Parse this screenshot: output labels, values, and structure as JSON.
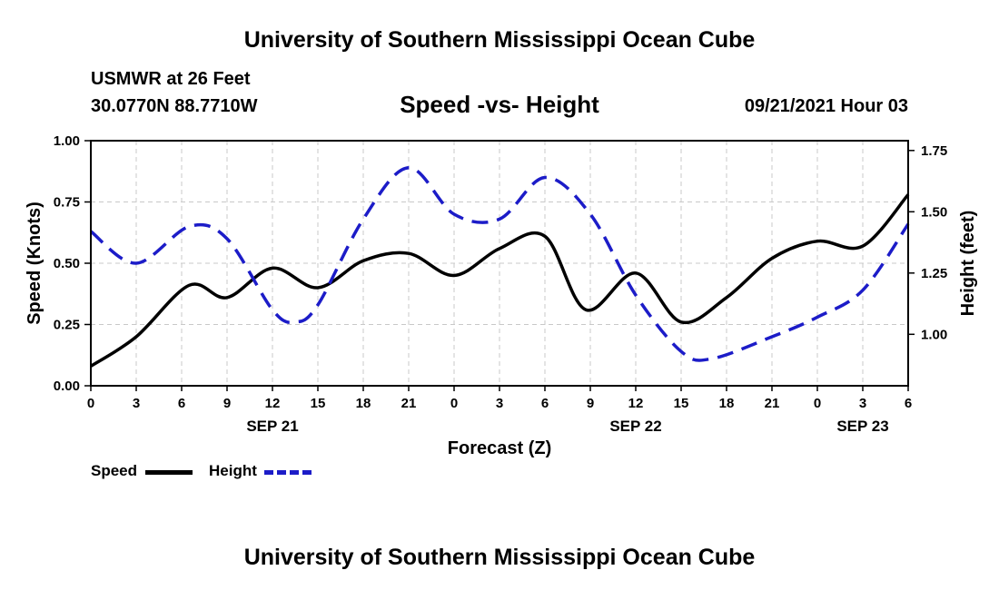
{
  "header": {
    "title": "University of Southern Mississippi Ocean Cube",
    "station": "USMWR at 26 Feet",
    "coords": "30.0770N  88.7710W",
    "subtitle": "Speed -vs- Height",
    "datetime": "09/21/2021 Hour 03"
  },
  "footer": {
    "title": "University of Southern Mississippi Ocean Cube"
  },
  "legend": {
    "speed_label": "Speed",
    "height_label": "Height"
  },
  "colors": {
    "speed": "#000000",
    "height": "#1c1cc8",
    "grid": "#c8c8c8"
  },
  "chart_data": {
    "type": "line",
    "title": "Speed -vs- Height",
    "xlabel": "Forecast (Z)",
    "ylabel": "Speed (Knots)",
    "y2label": "Height (feet)",
    "x_range": [
      0,
      54
    ],
    "ylim": [
      0,
      1.0
    ],
    "y2lim": [
      0.79,
      1.79
    ],
    "yticks": [
      "0.00",
      "0.25",
      "0.50",
      "0.75",
      "1.00"
    ],
    "yticks_values": [
      0,
      0.25,
      0.5,
      0.75,
      1.0
    ],
    "y2ticks": [
      "1.00",
      "1.25",
      "1.50",
      "1.75"
    ],
    "y2ticks_values": [
      1.0,
      1.25,
      1.5,
      1.75
    ],
    "xticks": [
      "0",
      "3",
      "6",
      "9",
      "12",
      "15",
      "18",
      "21",
      "0",
      "3",
      "6",
      "9",
      "12",
      "15",
      "18",
      "21",
      "0",
      "3",
      "6"
    ],
    "date_labels": [
      {
        "label": "SEP 21",
        "x": 12
      },
      {
        "label": "SEP 22",
        "x": 36
      },
      {
        "label": "SEP 23",
        "x": 51
      }
    ],
    "grid": true,
    "legend_position": "bottom-left",
    "series": [
      {
        "name": "Speed",
        "axis": "left",
        "x": [
          0,
          3,
          6.5,
          9,
          12,
          15,
          18,
          21,
          24,
          27,
          30,
          32.7,
          36,
          39,
          42,
          45,
          48,
          51,
          54
        ],
        "values": [
          0.08,
          0.2,
          0.41,
          0.36,
          0.48,
          0.4,
          0.51,
          0.54,
          0.45,
          0.56,
          0.61,
          0.31,
          0.46,
          0.26,
          0.36,
          0.52,
          0.59,
          0.57,
          0.78
        ]
      },
      {
        "name": "Height",
        "axis": "right",
        "x": [
          0,
          3,
          6.5,
          9,
          12,
          13.5,
          15,
          18,
          21,
          24,
          27,
          30,
          33,
          36,
          39,
          41,
          45,
          48,
          51,
          54
        ],
        "values": [
          1.42,
          1.29,
          1.44,
          1.39,
          1.1,
          1.05,
          1.12,
          1.47,
          1.68,
          1.49,
          1.47,
          1.64,
          1.49,
          1.16,
          0.93,
          0.9,
          0.99,
          1.07,
          1.18,
          1.45
        ]
      }
    ]
  }
}
